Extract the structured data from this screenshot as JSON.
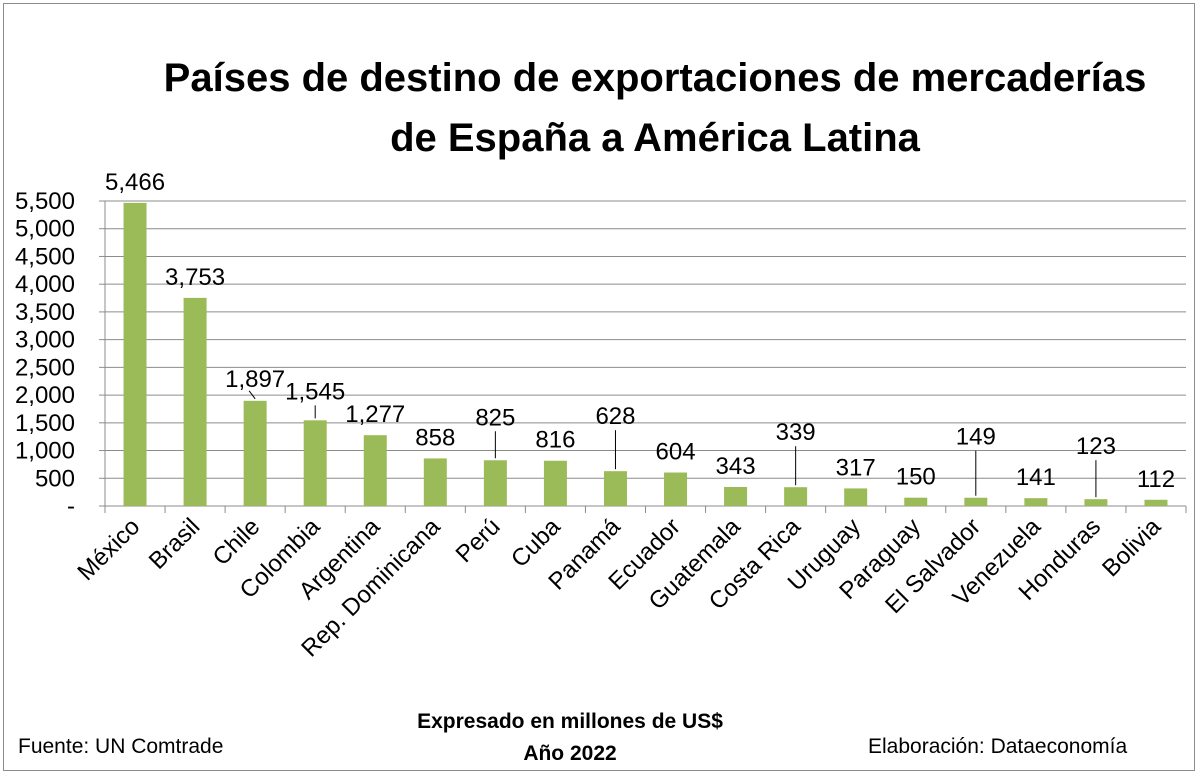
{
  "chart_data": {
    "type": "bar",
    "title": [
      "Países de destino de exportaciones de mercaderías",
      "de España a América Latina"
    ],
    "categories": [
      "México",
      "Brasil",
      "Chile",
      "Colombia",
      "Argentina",
      "Rep. Dominicana",
      "Perú",
      "Cuba",
      "Panamá",
      "Ecuador",
      "Guatemala",
      "Costa Rica",
      "Uruguay",
      "Paraguay",
      "El Salvador",
      "Venezuela",
      "Honduras",
      "Bolivia"
    ],
    "values": [
      5466,
      3753,
      1897,
      1545,
      1277,
      858,
      825,
      816,
      628,
      604,
      343,
      339,
      317,
      150,
      149,
      141,
      123,
      112
    ],
    "value_labels": [
      "5,466",
      "3,753",
      "1,897",
      "1,545",
      "1,277",
      "858",
      "825",
      "816",
      "628",
      "604",
      "343",
      "339",
      "317",
      "150",
      "149",
      "141",
      "123",
      "112"
    ],
    "yticks": [
      "-",
      "500",
      "1,000",
      "1,500",
      "2,000",
      "2,500",
      "3,000",
      "3,500",
      "4,000",
      "4,500",
      "5,000",
      "5,500"
    ],
    "ylim": [
      0,
      5500
    ],
    "grid": true,
    "bar_color": "#9bbb59",
    "note": [
      "Expresado en millones de US$",
      "Año 2022"
    ]
  },
  "footer": {
    "source": "Fuente: UN Comtrade",
    "credit": "Elaboración: Dataeconomía"
  }
}
